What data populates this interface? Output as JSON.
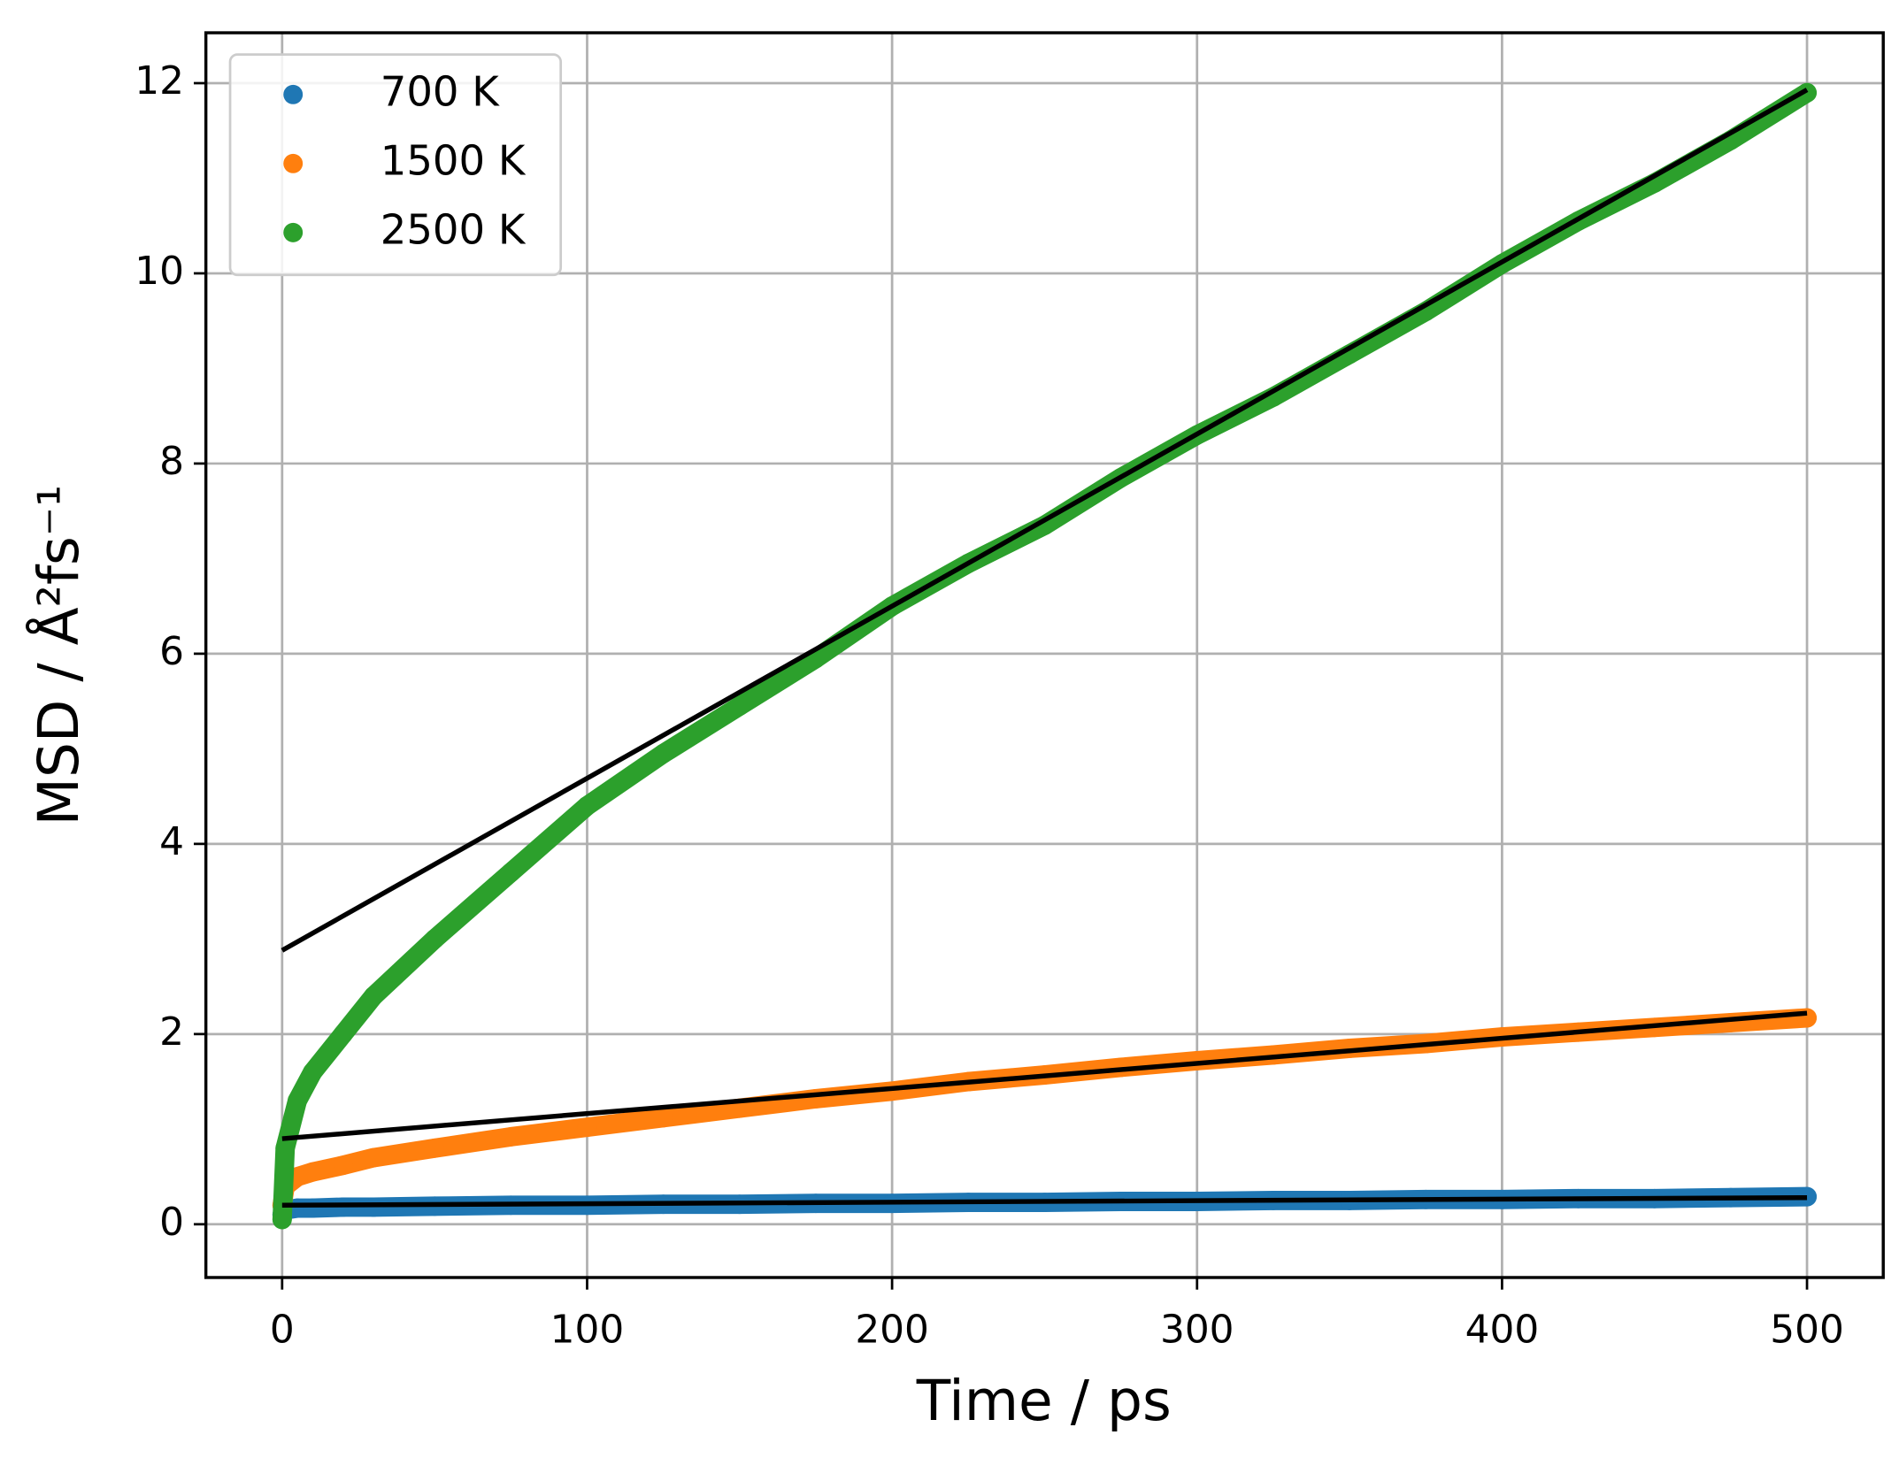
{
  "chart_data": {
    "type": "scatter",
    "xlabel": "Time / ps",
    "ylabel": "MSD / Å²fs⁻¹",
    "xlim": [
      -25,
      525
    ],
    "xticks": [
      0,
      100,
      200,
      300,
      400,
      500
    ],
    "ylim": [
      -0.56,
      12.53
    ],
    "yticks": [
      0,
      2,
      4,
      6,
      8,
      10,
      12
    ],
    "grid": true,
    "legend": "upper left",
    "x": [
      0,
      1,
      5,
      10,
      20,
      30,
      50,
      75,
      100,
      125,
      150,
      175,
      200,
      225,
      250,
      275,
      300,
      325,
      350,
      375,
      400,
      425,
      450,
      475,
      500
    ],
    "series": [
      {
        "name": "700 K",
        "color": "#1f77b4",
        "values": [
          0.1,
          0.15,
          0.17,
          0.17,
          0.18,
          0.18,
          0.19,
          0.2,
          0.2,
          0.21,
          0.21,
          0.22,
          0.22,
          0.23,
          0.23,
          0.24,
          0.24,
          0.25,
          0.25,
          0.26,
          0.26,
          0.27,
          0.27,
          0.28,
          0.29
        ]
      },
      {
        "name": "1500 K",
        "color": "#ff7f0e",
        "values": [
          0.2,
          0.4,
          0.5,
          0.55,
          0.62,
          0.7,
          0.8,
          0.92,
          1.02,
          1.12,
          1.22,
          1.32,
          1.4,
          1.5,
          1.57,
          1.65,
          1.72,
          1.78,
          1.85,
          1.9,
          1.97,
          2.02,
          2.07,
          2.12,
          2.17
        ]
      },
      {
        "name": "2500 K",
        "color": "#2ca02c",
        "values": [
          0.05,
          0.8,
          1.3,
          1.6,
          2.0,
          2.4,
          3.0,
          3.7,
          4.4,
          4.95,
          5.45,
          5.95,
          6.5,
          6.95,
          7.35,
          7.85,
          8.3,
          8.7,
          9.15,
          9.6,
          10.1,
          10.55,
          10.95,
          11.4,
          11.9
        ]
      }
    ],
    "fit_lines": [
      {
        "color": "#000000",
        "x": [
          0,
          500
        ],
        "values": [
          0.2,
          0.28
        ]
      },
      {
        "color": "#000000",
        "x": [
          0,
          500
        ],
        "values": [
          0.9,
          2.22
        ]
      },
      {
        "color": "#000000",
        "x": [
          0,
          500
        ],
        "values": [
          2.88,
          11.93
        ]
      }
    ]
  }
}
